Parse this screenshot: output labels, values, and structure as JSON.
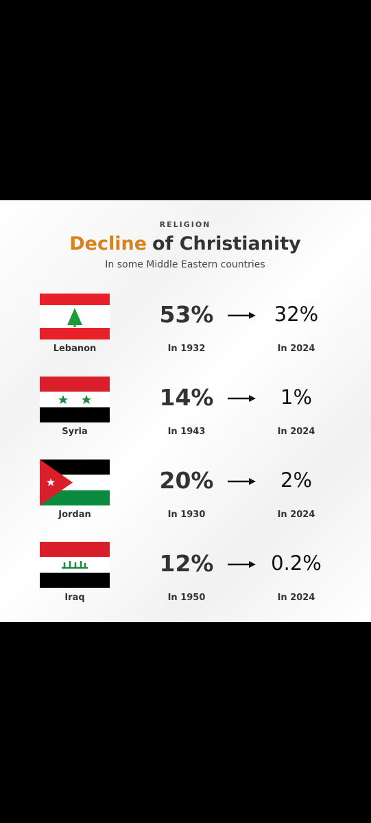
{
  "header": {
    "kicker": "RELIGION",
    "title": {
      "highlight": "Decline",
      "rest": "of Christianity"
    },
    "subtitle": "In some Middle Eastern countries"
  },
  "rows": [
    {
      "country": "Lebanon",
      "before": {
        "value": "53%",
        "year": "In 1932"
      },
      "after": {
        "value": "32%",
        "year": "In 2024"
      }
    },
    {
      "country": "Syria",
      "before": {
        "value": "14%",
        "year": "In 1943"
      },
      "after": {
        "value": "1%",
        "year": "In 2024"
      }
    },
    {
      "country": "Jordan",
      "before": {
        "value": "20%",
        "year": "In 1930"
      },
      "after": {
        "value": "2%",
        "year": "In 2024"
      }
    },
    {
      "country": "Iraq",
      "before": {
        "value": "12%",
        "year": "In 1950"
      },
      "after": {
        "value": "0.2%",
        "year": "In 2024"
      }
    }
  ]
}
